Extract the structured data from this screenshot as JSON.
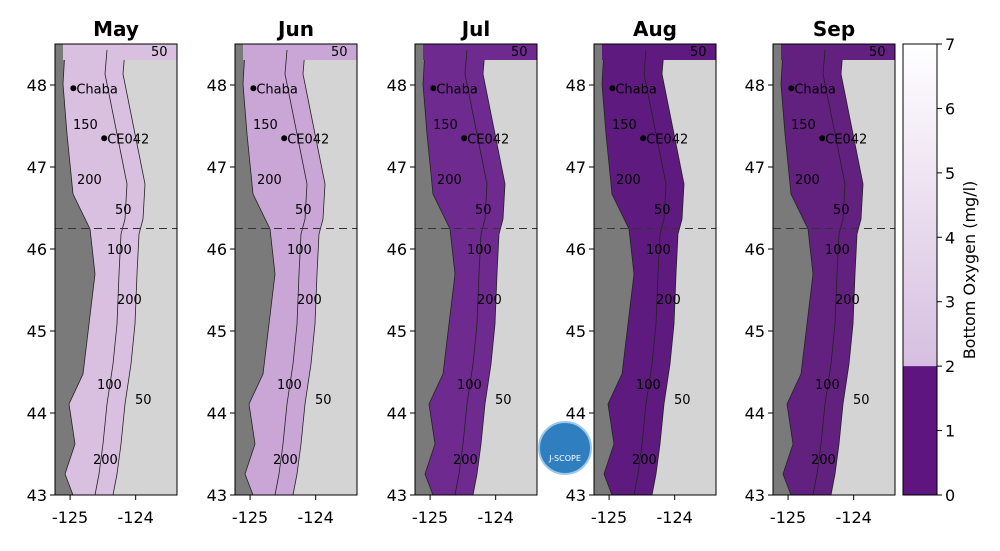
{
  "panels": [
    {
      "title": "May",
      "color": "#d9bfe0"
    },
    {
      "title": "Jun",
      "color": "#c9a6d6"
    },
    {
      "title": "Jul",
      "color": "#6e2a8e"
    },
    {
      "title": "Aug",
      "color": "#5f1a80"
    },
    {
      "title": "Sep",
      "color": "#62207f"
    }
  ],
  "axes": {
    "xticks": [
      -125,
      -124
    ],
    "yticks": [
      43,
      44,
      45,
      46,
      47,
      48
    ],
    "xlim": [
      -125.23,
      -123.37
    ],
    "ylim": [
      43,
      48.5
    ]
  },
  "stations": [
    {
      "label": "Chaba",
      "lon": -124.95,
      "lat": 47.96
    },
    {
      "label": "CE042",
      "lon": -124.48,
      "lat": 47.35
    }
  ],
  "contours": [
    "50",
    "100",
    "150",
    "200"
  ],
  "colorbar": {
    "label": "Bottom Oxygen (mg/l)",
    "ticks": [
      0,
      1,
      2,
      3,
      4,
      5,
      6,
      7
    ],
    "lim": [
      0,
      7
    ],
    "low_color": "#5e1580",
    "high_color": "#d6bee0"
  },
  "logo": "J-SCOPE"
}
